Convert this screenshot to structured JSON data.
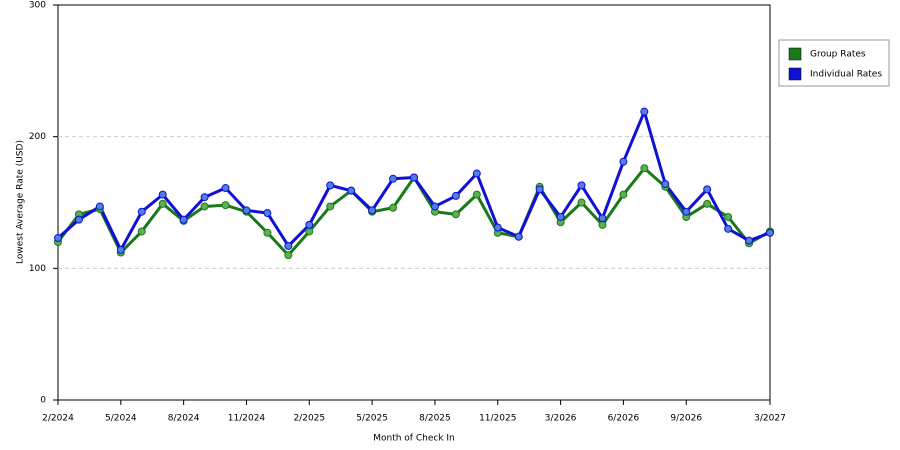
{
  "chart_data": {
    "type": "line",
    "x_label": "Month of Check In",
    "y_label": "Lowest Average Rate (USD)",
    "categories": [
      "2/2024",
      null,
      null,
      "5/2024",
      null,
      null,
      "8/2024",
      null,
      null,
      "11/2024",
      null,
      null,
      "2/2025",
      null,
      null,
      "5/2025",
      null,
      null,
      "8/2025",
      null,
      null,
      "11/2025",
      null,
      null,
      "3/2026",
      null,
      null,
      "6/2026",
      null,
      null,
      "9/2026",
      null,
      null,
      null,
      "3/2027"
    ],
    "series": [
      {
        "name": "Group Rates",
        "color": "#1a7a1a",
        "marker_color": "#5fae4f",
        "values": [
          120,
          141,
          145,
          112,
          128,
          149,
          136,
          147,
          148,
          143,
          127,
          110,
          128,
          147,
          159,
          143,
          146,
          169,
          143,
          141,
          156,
          127,
          124,
          162,
          135,
          150,
          133,
          156,
          176,
          162,
          139,
          149,
          139,
          119,
          128
        ]
      },
      {
        "name": "Individual Rates",
        "color": "#1010d8",
        "marker_color": "#4f7fe0",
        "values": [
          123,
          137,
          147,
          114,
          143,
          156,
          137,
          154,
          161,
          144,
          142,
          117,
          133,
          163,
          159,
          144,
          168,
          169,
          147,
          155,
          172,
          131,
          124,
          160,
          139,
          163,
          138,
          181,
          219,
          164,
          143,
          160,
          130,
          121,
          127
        ]
      }
    ],
    "ylim": [
      0,
      300
    ],
    "yticks": [
      0,
      100,
      200,
      300
    ],
    "grid": true,
    "legend": "right"
  }
}
